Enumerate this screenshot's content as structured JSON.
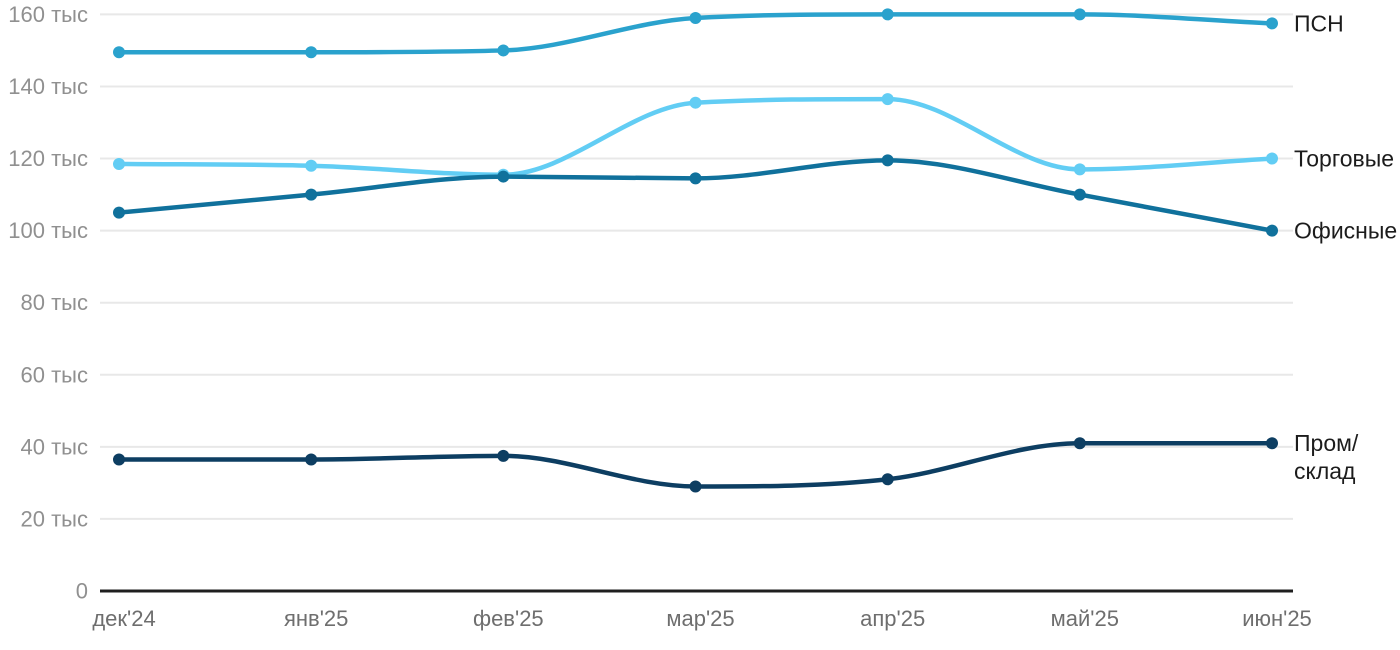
{
  "chart_data": {
    "type": "line",
    "curve": "monotone",
    "unit": "тыс",
    "categories": [
      "дек'24",
      "янв'25",
      "фев'25",
      "мар'25",
      "апр'25",
      "май'25",
      "июн'25"
    ],
    "ylim": [
      0,
      160
    ],
    "y_tick_step": 20,
    "y_tick_labels": [
      "0",
      "20 тыс",
      "40 тыс",
      "60 тыс",
      "80 тыс",
      "100 тыс",
      "120 тыс",
      "140 тыс",
      "160 тыс"
    ],
    "grid": true,
    "legend_position": "line-end-labels-right",
    "series": [
      {
        "id": "psn",
        "name": "ПСН",
        "label_lines": [
          "ПСН"
        ],
        "color": "#2aa2cd",
        "values": [
          149.5,
          149.5,
          150,
          159,
          160,
          160,
          157.5
        ]
      },
      {
        "id": "torgovye",
        "name": "Торговые",
        "label_lines": [
          "Торговые"
        ],
        "color": "#62cdf4",
        "values": [
          118.5,
          118,
          115.5,
          135.5,
          136.5,
          117,
          120
        ]
      },
      {
        "id": "ofisnye",
        "name": "Офисные",
        "label_lines": [
          "Офисные"
        ],
        "color": "#10719c",
        "values": [
          105,
          110,
          115,
          114.5,
          119.5,
          110,
          100
        ]
      },
      {
        "id": "prom-sklad",
        "name": "Пром/склад",
        "label_lines": [
          "Пром/",
          "склад"
        ],
        "color": "#0d3e62",
        "values": [
          36.5,
          36.5,
          37.5,
          29,
          31,
          41,
          41
        ]
      }
    ]
  },
  "styles": {
    "background": "#ffffff",
    "grid_color": "#e8e8e8",
    "axis_color": "#1f1f1f",
    "y_tick_color": "#909090",
    "x_tick_color": "#6e6e6e",
    "end_label_color": "#1c1c1c"
  }
}
